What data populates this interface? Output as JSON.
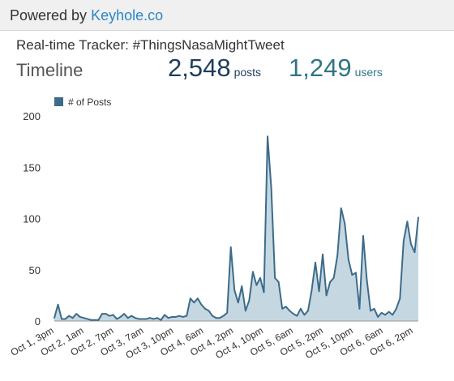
{
  "header": {
    "powered_prefix": "Powered by",
    "link_text": "Keyhole.co"
  },
  "tracker_title": "Real-time Tracker: #ThingsNasaMightTweet",
  "section_title": "Timeline",
  "stats": {
    "posts_value": "2,548",
    "posts_label": "posts",
    "users_value": "1,249",
    "users_label": "users"
  },
  "colors": {
    "line": "#3d6b8a",
    "fill": "#c5d8e2",
    "posts": "#1f3d5c",
    "users": "#2f7686"
  },
  "chart_data": {
    "type": "area",
    "legend": "# of Posts",
    "legend_position": "top-left",
    "grid": false,
    "ylim": [
      0,
      200
    ],
    "yticks": [
      0,
      50,
      100,
      150,
      200
    ],
    "xtick_labels": [
      "Oct 1, 3pm",
      "Oct 2, 1am",
      "Oct 2, 7pm",
      "Oct 3, 7am",
      "Oct 3, 10pm",
      "Oct 4, 6am",
      "Oct 4, 2pm",
      "Oct 4, 10pm",
      "Oct 5, 6am",
      "Oct 5, 2pm",
      "Oct 5, 10pm",
      "Oct 6, 6am",
      "Oct 6, 2pm"
    ],
    "series": [
      {
        "name": "# of Posts",
        "values": [
          3,
          16,
          2,
          2,
          5,
          3,
          7,
          4,
          3,
          2,
          1,
          1,
          1,
          7,
          7,
          5,
          6,
          2,
          4,
          7,
          3,
          5,
          3,
          2,
          2,
          2,
          3,
          2,
          3,
          1,
          6,
          3,
          4,
          4,
          5,
          4,
          5,
          22,
          18,
          22,
          16,
          12,
          10,
          5,
          3,
          3,
          5,
          8,
          72,
          30,
          18,
          34,
          10,
          20,
          48,
          35,
          42,
          28,
          180,
          130,
          42,
          38,
          12,
          14,
          10,
          7,
          5,
          12,
          6,
          10,
          30,
          57,
          29,
          65,
          25,
          38,
          42,
          64,
          110,
          95,
          60,
          45,
          47,
          12,
          83,
          40,
          10,
          12,
          4,
          8,
          6,
          9,
          6,
          12,
          22,
          78,
          97,
          75,
          67,
          101
        ]
      }
    ]
  }
}
